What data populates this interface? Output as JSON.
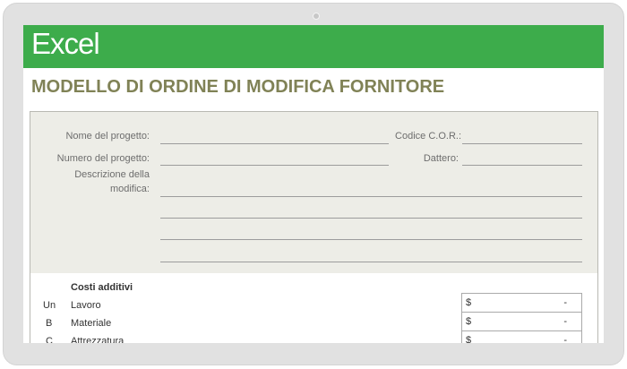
{
  "app": {
    "brand": "Excel",
    "accent": "#3dac4b"
  },
  "document": {
    "title": "MODELLO DI ORDINE DI MODIFICA FORNITORE"
  },
  "form": {
    "project_name_label": "Nome del progetto:",
    "cor_code_label": "Codice C.O.R.:",
    "project_number_label": "Numero del progetto:",
    "date_label": "Dattero:",
    "description_label_1": "Descrizione della",
    "description_label_2": "modifica:"
  },
  "costs": {
    "header": "Costi additivi",
    "rows": [
      {
        "code": "Un",
        "name": "Lavoro",
        "currency": "$",
        "value": "-"
      },
      {
        "code": "B",
        "name": "Materiale",
        "currency": "$",
        "value": "-"
      },
      {
        "code": "C",
        "name": "Attrezzatura",
        "currency": "$",
        "value": "-"
      }
    ]
  }
}
